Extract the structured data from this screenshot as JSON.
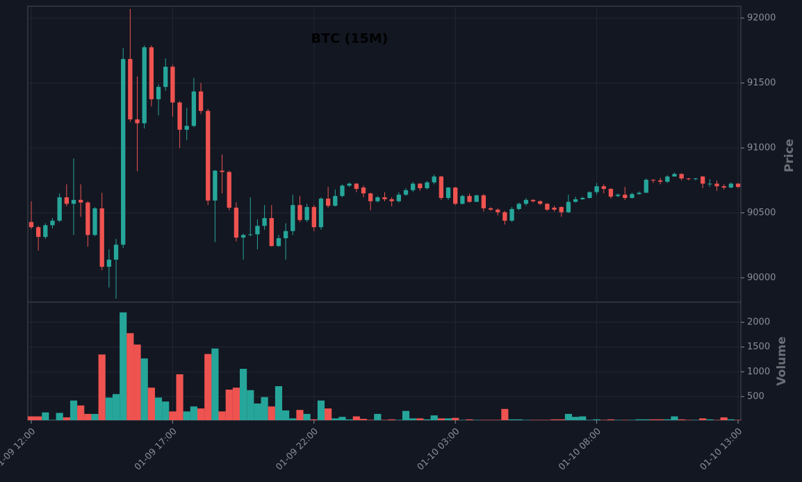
{
  "chart_data": {
    "type": "candlestick",
    "title": "BTC (15M)",
    "x": [
      "01-09 12:00",
      "01-09 12:15",
      "01-09 12:30",
      "01-09 12:45",
      "01-09 13:00",
      "01-09 13:15",
      "01-09 13:30",
      "01-09 13:45",
      "01-09 14:00",
      "01-09 14:15",
      "01-09 14:30",
      "01-09 14:45",
      "01-09 15:00",
      "01-09 15:15",
      "01-09 15:30",
      "01-09 15:45",
      "01-09 16:00",
      "01-09 16:15",
      "01-09 16:30",
      "01-09 16:45",
      "01-09 17:00",
      "01-09 17:15",
      "01-09 17:30",
      "01-09 17:45",
      "01-09 18:00",
      "01-09 18:15",
      "01-09 18:30",
      "01-09 18:45",
      "01-09 19:00",
      "01-09 19:15",
      "01-09 19:30",
      "01-09 19:45",
      "01-09 20:00",
      "01-09 20:15",
      "01-09 20:30",
      "01-09 20:45",
      "01-09 21:00",
      "01-09 21:15",
      "01-09 21:30",
      "01-09 21:45",
      "01-09 22:00",
      "01-09 22:15",
      "01-09 22:30",
      "01-09 22:45",
      "01-09 23:00",
      "01-09 23:15",
      "01-09 23:30",
      "01-09 23:45",
      "01-10 00:00",
      "01-10 00:15",
      "01-10 00:30",
      "01-10 00:45",
      "01-10 01:00",
      "01-10 01:15",
      "01-10 01:30",
      "01-10 01:45",
      "01-10 02:00",
      "01-10 02:15",
      "01-10 02:30",
      "01-10 02:45",
      "01-10 03:00",
      "01-10 03:15",
      "01-10 03:30",
      "01-10 03:45",
      "01-10 04:00",
      "01-10 04:15",
      "01-10 04:30",
      "01-10 04:45",
      "01-10 05:00",
      "01-10 05:15",
      "01-10 05:30",
      "01-10 05:45",
      "01-10 06:00",
      "01-10 06:15",
      "01-10 06:30",
      "01-10 06:45",
      "01-10 07:00",
      "01-10 07:15",
      "01-10 07:30",
      "01-10 07:45",
      "01-10 08:00",
      "01-10 08:15",
      "01-10 08:30",
      "01-10 08:45",
      "01-10 09:00",
      "01-10 09:15",
      "01-10 09:30",
      "01-10 09:45",
      "01-10 10:00",
      "01-10 10:15",
      "01-10 10:30",
      "01-10 10:45",
      "01-10 11:00",
      "01-10 11:15",
      "01-10 11:30",
      "01-10 11:45",
      "01-10 12:00",
      "01-10 12:15",
      "01-10 12:30",
      "01-10 12:45",
      "01-10 13:00"
    ],
    "open": [
      90430,
      90390,
      90315,
      90405,
      90440,
      90620,
      90570,
      90600,
      90580,
      90330,
      90535,
      90085,
      90140,
      90255,
      91685,
      91220,
      91190,
      91775,
      91375,
      91470,
      91625,
      91350,
      91140,
      91170,
      91435,
      91285,
      90595,
      90825,
      90815,
      90540,
      90310,
      90330,
      90335,
      90400,
      90460,
      90245,
      90305,
      90360,
      90560,
      90445,
      90545,
      90390,
      90610,
      90555,
      90630,
      90710,
      90725,
      90695,
      90650,
      90590,
      90620,
      90605,
      90590,
      90640,
      90675,
      90725,
      90690,
      90735,
      90780,
      90615,
      90695,
      90570,
      90630,
      90585,
      90635,
      90535,
      90525,
      90505,
      90440,
      90530,
      90570,
      90600,
      90590,
      90570,
      90540,
      90545,
      90505,
      90585,
      90605,
      90615,
      90660,
      90705,
      90685,
      90630,
      90640,
      90615,
      90645,
      90655,
      90755,
      90750,
      90740,
      90780,
      90800,
      90765,
      90760,
      90780,
      90725,
      90725,
      90705,
      90695,
      90725
    ],
    "high": [
      90590,
      90400,
      90420,
      90460,
      90650,
      90720,
      90920,
      90720,
      90590,
      90545,
      90655,
      90220,
      90300,
      91770,
      92070,
      91550,
      91790,
      91790,
      91490,
      91690,
      91640,
      91360,
      91310,
      91540,
      91500,
      91300,
      90830,
      90950,
      90825,
      90580,
      90340,
      90620,
      90450,
      90560,
      90560,
      90330,
      90420,
      90640,
      90630,
      90570,
      90560,
      90620,
      90700,
      90680,
      90720,
      90735,
      90730,
      90710,
      90655,
      90630,
      90660,
      90620,
      90660,
      90690,
      90740,
      90730,
      90745,
      90795,
      90785,
      90700,
      90700,
      90640,
      90650,
      90640,
      90645,
      90545,
      90535,
      90515,
      90545,
      90580,
      90615,
      90605,
      90595,
      90575,
      90555,
      90550,
      90640,
      90625,
      90625,
      90665,
      90730,
      90720,
      90690,
      90650,
      90700,
      90655,
      90665,
      90765,
      90760,
      90770,
      90790,
      90810,
      90805,
      90770,
      90770,
      90785,
      90760,
      90750,
      90720,
      90735,
      90730
    ],
    "low": [
      90375,
      90210,
      90300,
      90380,
      90430,
      90550,
      90330,
      90470,
      90240,
      90320,
      90060,
      89925,
      89840,
      90230,
      91200,
      90820,
      91150,
      91320,
      91250,
      91440,
      91240,
      91000,
      91060,
      91160,
      91260,
      90560,
      90275,
      90650,
      90520,
      90280,
      90140,
      90320,
      90220,
      90370,
      90240,
      90240,
      90140,
      90330,
      90430,
      90430,
      90360,
      90370,
      90540,
      90550,
      90620,
      90700,
      90660,
      90620,
      90520,
      90580,
      90590,
      90550,
      90580,
      90630,
      90660,
      90670,
      90680,
      90720,
      90600,
      90600,
      90560,
      90565,
      90580,
      90600,
      90510,
      90515,
      90480,
      90410,
      90430,
      90520,
      90555,
      90580,
      90560,
      90515,
      90510,
      90470,
      90500,
      90580,
      90600,
      90610,
      90640,
      90650,
      90610,
      90620,
      90600,
      90610,
      90640,
      90660,
      90730,
      90720,
      90730,
      90780,
      90750,
      90750,
      90750,
      90690,
      90700,
      90670,
      90680,
      90690,
      90690
    ],
    "close": [
      90390,
      90315,
      90405,
      90440,
      90620,
      90570,
      90600,
      90580,
      90330,
      90535,
      90085,
      90140,
      90255,
      91685,
      91220,
      91190,
      91775,
      91375,
      91470,
      91625,
      91350,
      91140,
      91170,
      91435,
      91285,
      90595,
      90825,
      90815,
      90540,
      90310,
      90330,
      90335,
      90400,
      90460,
      90245,
      90305,
      90360,
      90560,
      90445,
      90545,
      90390,
      90610,
      90555,
      90630,
      90710,
      90725,
      90685,
      90650,
      90590,
      90620,
      90605,
      90590,
      90640,
      90675,
      90725,
      90690,
      90735,
      90780,
      90615,
      90695,
      90570,
      90630,
      90585,
      90635,
      90535,
      90525,
      90505,
      90440,
      90530,
      90570,
      90600,
      90590,
      90570,
      90525,
      90525,
      90505,
      90585,
      90605,
      90615,
      90660,
      90705,
      90685,
      90625,
      90640,
      90615,
      90645,
      90655,
      90755,
      90750,
      90740,
      90780,
      90800,
      90765,
      90760,
      90765,
      90725,
      90725,
      90705,
      90695,
      90725,
      90700
    ],
    "volume": [
      100,
      100,
      180,
      30,
      170,
      80,
      420,
      320,
      150,
      150,
      1350,
      480,
      550,
      2200,
      1780,
      1550,
      1270,
      680,
      480,
      400,
      200,
      950,
      200,
      300,
      260,
      1360,
      1470,
      200,
      640,
      680,
      1060,
      630,
      360,
      490,
      300,
      710,
      220,
      60,
      230,
      150,
      40,
      420,
      260,
      60,
      90,
      40,
      100,
      50,
      30,
      150,
      30,
      40,
      30,
      210,
      60,
      60,
      40,
      120,
      60,
      60,
      70,
      30,
      40,
      30,
      30,
      30,
      30,
      250,
      40,
      40,
      30,
      30,
      30,
      30,
      40,
      40,
      150,
      90,
      100,
      30,
      40,
      30,
      40,
      30,
      30,
      30,
      40,
      40,
      40,
      40,
      40,
      100,
      40,
      30,
      30,
      60,
      40,
      30,
      80,
      40,
      30
    ],
    "up_color": "#26a69a",
    "down_color": "#ef5350",
    "ylabel": "Price",
    "ylim": [
      89813,
      92091
    ],
    "yticks": [
      90000,
      90500,
      91000,
      91500,
      92000
    ],
    "volume_ylabel": "Volume",
    "volume_ylim": [
      23,
      2407
    ],
    "volume_yticks": [
      500,
      1000,
      1500,
      2000
    ],
    "xticks": [
      "01-09 12:00",
      "01-09 17:00",
      "01-09 22:00",
      "01-10 03:00",
      "01-10 08:00",
      "01-10 13:00"
    ],
    "grid": true
  }
}
